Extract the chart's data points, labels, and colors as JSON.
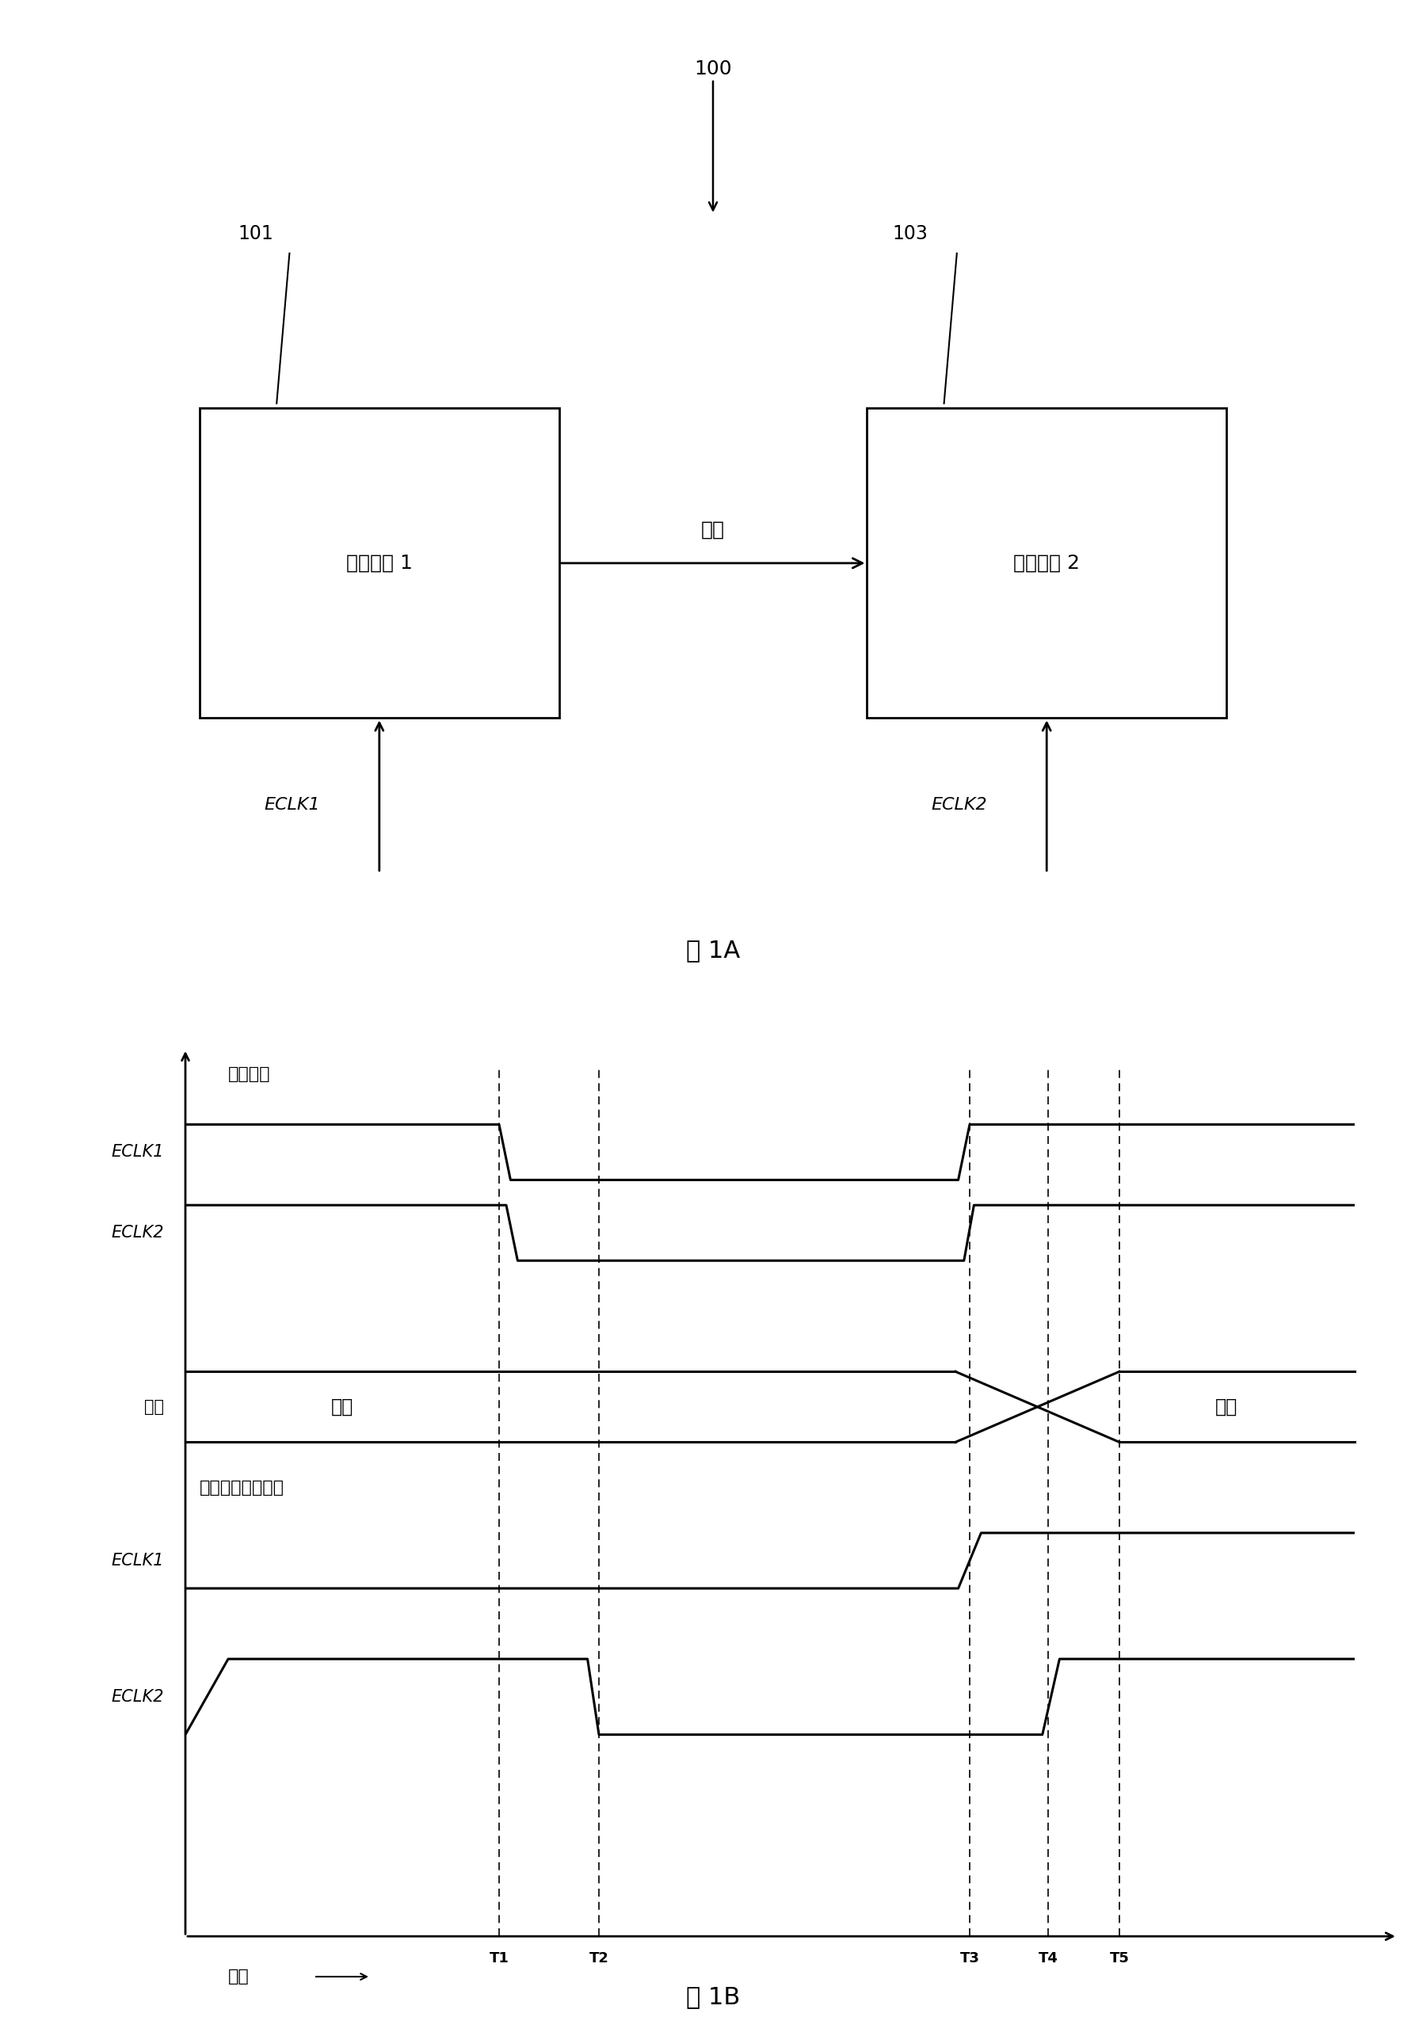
{
  "bg_color": "#ffffff",
  "fig1A": {
    "box1_label": "逻辑方块 1",
    "box2_label": "逻辑方块 2",
    "arrow_label": "数据",
    "label_100": "100",
    "label_101": "101",
    "label_103": "103",
    "eclk1_label": "ECLK1",
    "eclk2_label": "ECLK2",
    "fig_label": "图 1A"
  },
  "fig1B": {
    "sync_label": "同步时钟",
    "phase_label": "具有相位差的时钟",
    "valid_label": "有效",
    "time_label": "时间",
    "t_labels": [
      "T1",
      "T2",
      "T3",
      "T4",
      "T5"
    ],
    "row_labels_left": [
      "ECLK1",
      "ECLK2",
      "数据",
      "ECLK1",
      "ECLK2"
    ],
    "fig_label": "图 1B"
  }
}
